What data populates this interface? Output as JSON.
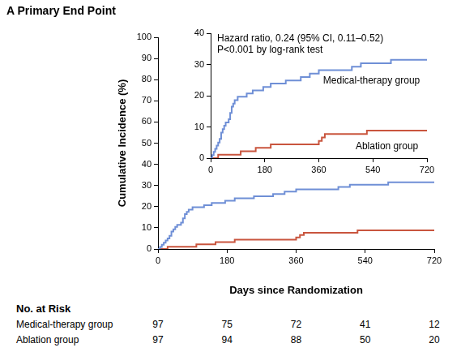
{
  "chart_data": [
    {
      "type": "line",
      "title": "A Primary End Point",
      "x_label": "Days since Randomization",
      "y_label": "Cumulative Incidence (%)",
      "xlim": [
        0,
        720
      ],
      "xticks": [
        0,
        180,
        360,
        540,
        720
      ],
      "ylim": [
        0,
        100
      ],
      "yticks": [
        0,
        10,
        20,
        30,
        40,
        50,
        60,
        70,
        80,
        90,
        100
      ],
      "grid": false,
      "line_style": "step",
      "series": [
        {
          "name": "Medical-therapy group",
          "color": "#6f8fd6",
          "x": [
            0,
            5,
            10,
            15,
            20,
            25,
            30,
            35,
            40,
            45,
            50,
            60,
            65,
            70,
            75,
            80,
            90,
            120,
            140,
            175,
            200,
            250,
            300,
            330,
            360,
            470,
            500,
            600,
            720
          ],
          "values": [
            0,
            1,
            2,
            3,
            4,
            5,
            6.2,
            8.2,
            9.3,
            10.4,
            11.4,
            12.5,
            14.5,
            16.5,
            17.5,
            18.6,
            19.7,
            20.7,
            21.7,
            22.8,
            23.9,
            24.9,
            26.0,
            27.1,
            28.2,
            29.3,
            30.4,
            31.5,
            31.5
          ]
        },
        {
          "name": "Ablation group",
          "color": "#c9553e",
          "x": [
            0,
            25,
            100,
            150,
            200,
            360,
            370,
            380,
            520,
            720
          ],
          "values": [
            0,
            1.1,
            2.2,
            3.3,
            4.4,
            5.5,
            6.6,
            7.7,
            8.8,
            8.8
          ]
        }
      ],
      "at_risk": {
        "title": "No. at Risk",
        "x": [
          0,
          180,
          360,
          540,
          720
        ],
        "rows": [
          {
            "name": "Medical-therapy group",
            "values": [
              97,
              75,
              72,
              41,
              12
            ]
          },
          {
            "name": "Ablation group",
            "values": [
              97,
              94,
              88,
              50,
              20
            ]
          }
        ]
      }
    },
    {
      "type": "line",
      "annotations": [
        "Hazard ratio, 0.24 (95% CI, 0.11–0.52)",
        "P<0.001 by log-rank test"
      ],
      "xlim": [
        0,
        720
      ],
      "xticks": [
        0,
        180,
        360,
        540,
        720
      ],
      "ylim": [
        0,
        40
      ],
      "yticks": [
        0,
        10,
        20,
        30,
        40
      ],
      "grid": false,
      "line_style": "step",
      "series": [
        {
          "name": "Medical-therapy group",
          "color": "#6f8fd6",
          "x": [
            0,
            5,
            10,
            15,
            20,
            25,
            30,
            35,
            40,
            45,
            50,
            60,
            65,
            70,
            75,
            80,
            90,
            120,
            140,
            175,
            200,
            250,
            300,
            330,
            360,
            470,
            500,
            600,
            720
          ],
          "values": [
            0,
            1,
            2,
            3,
            4,
            5,
            6.2,
            8.2,
            9.3,
            10.4,
            11.4,
            12.5,
            14.5,
            16.5,
            17.5,
            18.6,
            19.7,
            20.7,
            21.7,
            22.8,
            23.9,
            24.9,
            26.0,
            27.1,
            28.2,
            29.3,
            30.4,
            31.5,
            31.5
          ]
        },
        {
          "name": "Ablation group",
          "color": "#c9553e",
          "x": [
            0,
            25,
            100,
            150,
            200,
            360,
            370,
            380,
            520,
            720
          ],
          "values": [
            0,
            1.1,
            2.2,
            3.3,
            4.4,
            5.5,
            6.6,
            7.7,
            8.8,
            8.8
          ]
        }
      ]
    }
  ]
}
